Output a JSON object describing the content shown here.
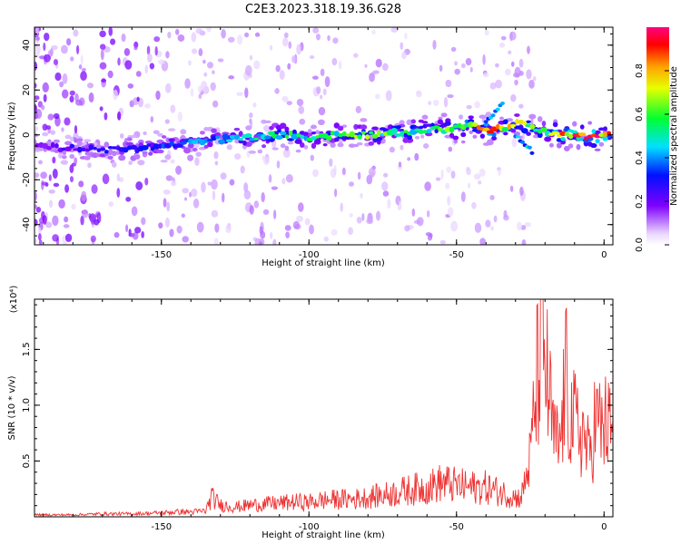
{
  "chart_data": [
    {
      "type": "heatmap",
      "title": "C2E3.2023.318.19.36.G28",
      "xlabel": "Height of straight line (km)",
      "ylabel": "Frequency (Hz)",
      "xlim": [
        -193,
        3
      ],
      "ylim": [
        -49,
        48
      ],
      "xticks": [
        -150,
        -100,
        -50,
        0
      ],
      "xticklabels": [
        "-150",
        "-100",
        "-50",
        "0"
      ],
      "yticks": [
        -40,
        -20,
        0,
        20,
        40
      ],
      "yticklabels": [
        "-40",
        "-20",
        "0",
        "20",
        "40"
      ],
      "colorbar": {
        "label": "Normalized spectral amplitude",
        "range": [
          0,
          1
        ],
        "ticks": [
          0.0,
          0.2,
          0.4,
          0.6,
          0.8
        ],
        "ticklabels": [
          "0.0",
          "0.2",
          "0.4",
          "0.6",
          "0.8"
        ],
        "colormap": "rainbow (white/lavender - purple - blue - cyan - green - yellow - orange - red - magenta)"
      },
      "ridge": {
        "x": [
          -190,
          -180,
          -170,
          -160,
          -150,
          -140,
          -130,
          -120,
          -110,
          -100,
          -90,
          -80,
          -70,
          -60,
          -50,
          -45,
          -40,
          -35,
          -30,
          -25,
          -20,
          -15,
          -10,
          -5,
          0
        ],
        "y": [
          -5,
          -6,
          -7,
          -6,
          -5,
          -3,
          -2,
          -1,
          0,
          -1,
          0,
          0,
          1,
          2,
          3,
          4,
          2,
          3,
          5,
          4,
          1,
          0,
          0,
          -1,
          0
        ],
        "peak_amplitude": [
          0.2,
          0.25,
          0.3,
          0.3,
          0.35,
          0.4,
          0.45,
          0.5,
          0.6,
          0.55,
          0.6,
          0.65,
          0.6,
          0.6,
          0.75,
          0.7,
          0.9,
          0.8,
          0.75,
          0.7,
          0.6,
          0.9,
          0.95,
          1.0,
          0.9
        ]
      },
      "branches": [
        {
          "x": [
            -40,
            -37,
            -34
          ],
          "y": [
            5,
            10,
            14
          ]
        },
        {
          "x": [
            -30,
            -27,
            -24
          ],
          "y": [
            0,
            -4,
            -8
          ]
        }
      ],
      "grid": false
    },
    {
      "type": "line",
      "xlabel": "Height of straight line (km)",
      "ylabel": "SNR (10 * v/v)",
      "y_multiplier": "(x10⁴)",
      "xlim": [
        -193,
        3
      ],
      "ylim": [
        0,
        1.95
      ],
      "xticks": [
        -150,
        -100,
        -50,
        0
      ],
      "xticklabels": [
        "-150",
        "-100",
        "-50",
        "0"
      ],
      "yticks": [
        0.5,
        1.0,
        1.5
      ],
      "yticklabels": [
        "0.5",
        "1.0",
        "1.5"
      ],
      "series": [
        {
          "color": "#ee3333",
          "x": [
            -193,
            -180,
            -170,
            -160,
            -150,
            -145,
            -140,
            -135,
            -133,
            -130,
            -125,
            -120,
            -115,
            -110,
            -105,
            -100,
            -95,
            -90,
            -85,
            -80,
            -75,
            -70,
            -65,
            -60,
            -55,
            -50,
            -45,
            -40,
            -35,
            -30,
            -28,
            -25,
            -23,
            -21,
            -19,
            -17,
            -15,
            -13,
            -11,
            -9,
            -7,
            -5,
            -3,
            -1,
            1,
            3
          ],
          "values": [
            0.02,
            0.02,
            0.03,
            0.03,
            0.04,
            0.05,
            0.05,
            0.06,
            0.2,
            0.12,
            0.1,
            0.12,
            0.13,
            0.14,
            0.15,
            0.15,
            0.17,
            0.18,
            0.18,
            0.2,
            0.22,
            0.25,
            0.28,
            0.3,
            0.35,
            0.32,
            0.3,
            0.3,
            0.25,
            0.2,
            0.2,
            0.6,
            1.3,
            1.9,
            1.3,
            0.8,
            0.7,
            1.4,
            1.0,
            0.9,
            0.85,
            0.6,
            1.0,
            0.9,
            0.95,
            0.8
          ]
        }
      ],
      "grid": false
    }
  ]
}
